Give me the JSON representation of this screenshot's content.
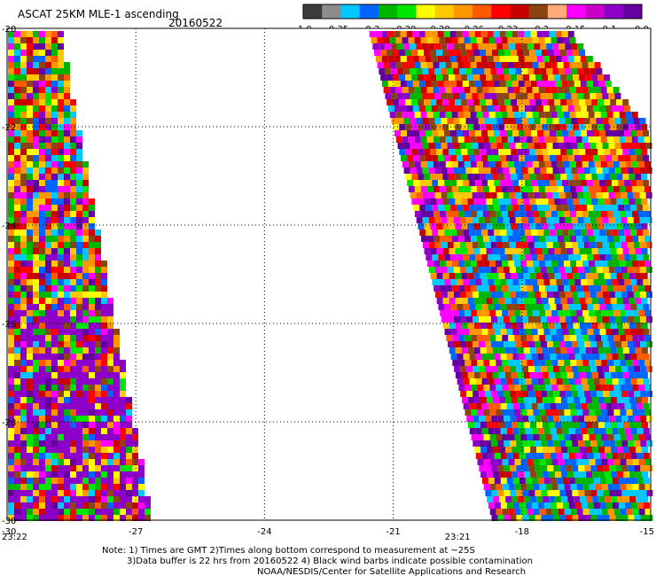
{
  "header": {
    "title": "ASCAT 25KM MLE-1 ascending",
    "date": "20160522"
  },
  "colorbar": {
    "colors": [
      "#3c3c3c",
      "#8c8c8c",
      "#00c8ff",
      "#0064ff",
      "#00b400",
      "#00e600",
      "#ffff00",
      "#ffc800",
      "#ff9600",
      "#ff5a00",
      "#ff0000",
      "#c80000",
      "#8b4513",
      "#ffaa78",
      "#ff00ff",
      "#c800c8",
      "#8c00c8",
      "#6400a0"
    ],
    "tick_labels": [
      "-1.0",
      "-0.35",
      "-0.3",
      "-0.29",
      "-0.28",
      "-0.26",
      "-0.23",
      "-0.2",
      "-0.15",
      "-0.1",
      "0.0"
    ]
  },
  "map": {
    "lat_range": [
      -30,
      -20
    ],
    "lon_range": [
      -30,
      -15
    ],
    "lat_labels": [
      "-20",
      "-22",
      "-24",
      "-26",
      "-28",
      "-30"
    ],
    "lon_labels": [
      "-30",
      "-27",
      "-24",
      "-21",
      "-18",
      "-15"
    ],
    "pass_times": [
      {
        "label": "23:22",
        "lon": -30
      },
      {
        "label": "23:21",
        "lon": -19.5
      }
    ],
    "swath_colors": [
      "#ff0000",
      "#ff9600",
      "#ffff00",
      "#ffc800",
      "#0064ff",
      "#00c8ff",
      "#00b400",
      "#ff00ff",
      "#8c00c8",
      "#c80000",
      "#8b4513",
      "#00e600",
      "#ff5a00",
      "#6400a0"
    ]
  },
  "footer": {
    "note1": "Note: 1) Times are GMT 2)Times along bottom correspond to measurement at ~25S",
    "note2": "3)Data buffer is 22 hrs from 20160522 4) Black wind barbs indicate possible contamination",
    "credit": "NOAA/NESDIS/Center for Satellite Applications and Research"
  }
}
